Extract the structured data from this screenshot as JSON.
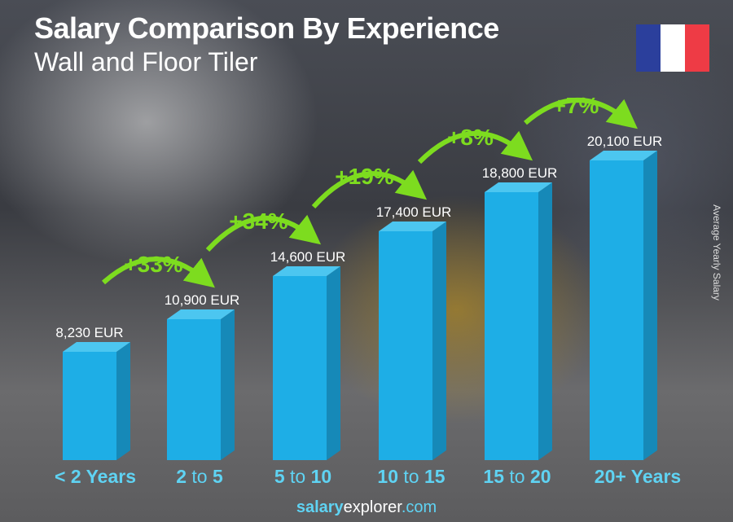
{
  "chart_data": {
    "type": "bar",
    "title": "Salary Comparison By Experience",
    "subtitle": "Wall and Floor Tiler",
    "ylabel": "Average Yearly Salary",
    "categories": [
      {
        "a": "< 2 Years",
        "mid": "",
        "b": ""
      },
      {
        "a": "2",
        "mid": " to ",
        "b": "5"
      },
      {
        "a": "5",
        "mid": " to ",
        "b": "10"
      },
      {
        "a": "10",
        "mid": " to ",
        "b": "15"
      },
      {
        "a": "15",
        "mid": " to ",
        "b": "20"
      },
      {
        "a": "20+ Years",
        "mid": "",
        "b": ""
      }
    ],
    "values": [
      8230,
      10900,
      14600,
      17400,
      18800,
      20100
    ],
    "value_labels": [
      "8,230 EUR",
      "10,900 EUR",
      "14,600 EUR",
      "17,400 EUR",
      "18,800 EUR",
      "20,100 EUR"
    ],
    "changes": [
      "+33%",
      "+34%",
      "+19%",
      "+8%",
      "+7%"
    ],
    "bar_color": "#1eaee6",
    "change_color": "#7ddc1f"
  },
  "flag_colors": [
    "#2b3f9c",
    "#ffffff",
    "#ee3b45"
  ],
  "footer": {
    "bold": "salary",
    "mid": "explorer",
    "end": ".com"
  }
}
